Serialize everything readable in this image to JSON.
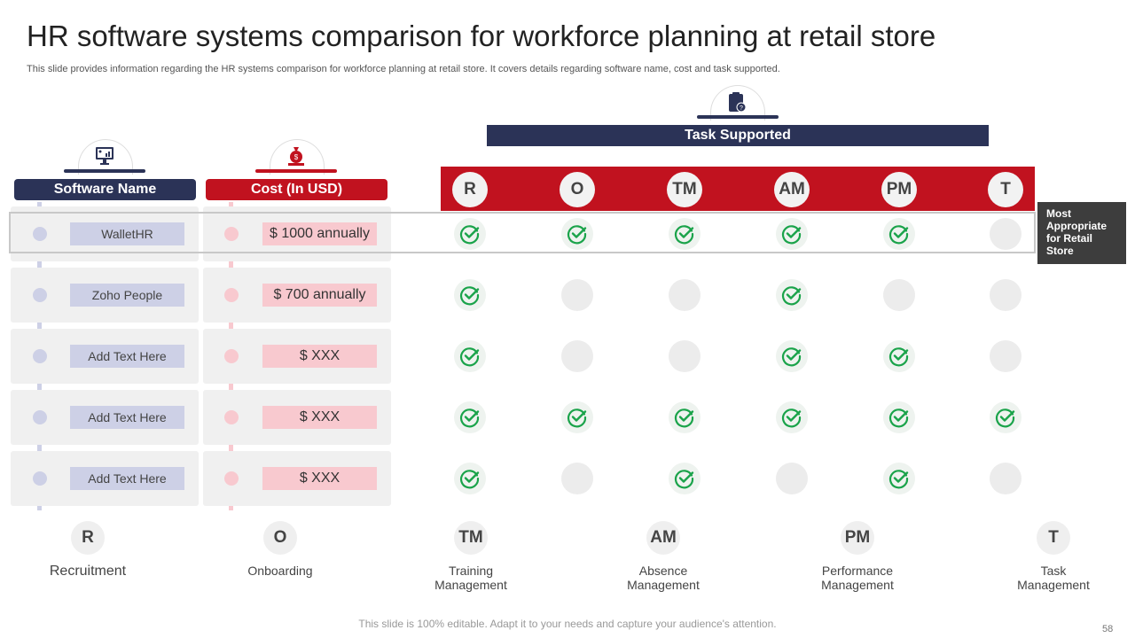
{
  "title": "HR software systems comparison for workforce planning at retail store",
  "subtitle": "This slide provides information regarding the HR systems comparison for workforce planning at retail store. It covers details regarding software name, cost and task supported.",
  "headers": {
    "software": "Software Name",
    "cost": "Cost (In USD)",
    "tasks": "Task Supported"
  },
  "task_columns": [
    "R",
    "O",
    "TM",
    "AM",
    "PM",
    "T"
  ],
  "rows": [
    {
      "name": "WalletHR",
      "cost": "$ 1000 annually",
      "supported": [
        true,
        true,
        true,
        true,
        true,
        false
      ]
    },
    {
      "name": "Zoho People",
      "cost": "$ 700 annually",
      "supported": [
        true,
        false,
        false,
        true,
        false,
        false
      ]
    },
    {
      "name": "Add Text Here",
      "cost": "$ XXX",
      "supported": [
        true,
        false,
        false,
        true,
        true,
        false
      ]
    },
    {
      "name": "Add Text Here",
      "cost": "$ XXX",
      "supported": [
        true,
        true,
        true,
        true,
        true,
        true
      ]
    },
    {
      "name": "Add Text Here",
      "cost": "$ XXX",
      "supported": [
        true,
        false,
        true,
        false,
        true,
        false
      ]
    }
  ],
  "callout": "Most Appropriate for Retail Store",
  "legend": [
    {
      "abbr": "R",
      "label": "Recruitment"
    },
    {
      "abbr": "O",
      "label": "Onboarding"
    },
    {
      "abbr": "TM",
      "label": "Training Management"
    },
    {
      "abbr": "AM",
      "label": "Absence Management"
    },
    {
      "abbr": "PM",
      "label": "Performance Management"
    },
    {
      "abbr": "T",
      "label": "Task Management"
    }
  ],
  "footer": "This slide is 100% editable. Adapt it to your needs and capture your audience's attention.",
  "page_number": "58",
  "colors": {
    "navy": "#2b3357",
    "red": "#c1121f",
    "check": "#1aa34a"
  }
}
